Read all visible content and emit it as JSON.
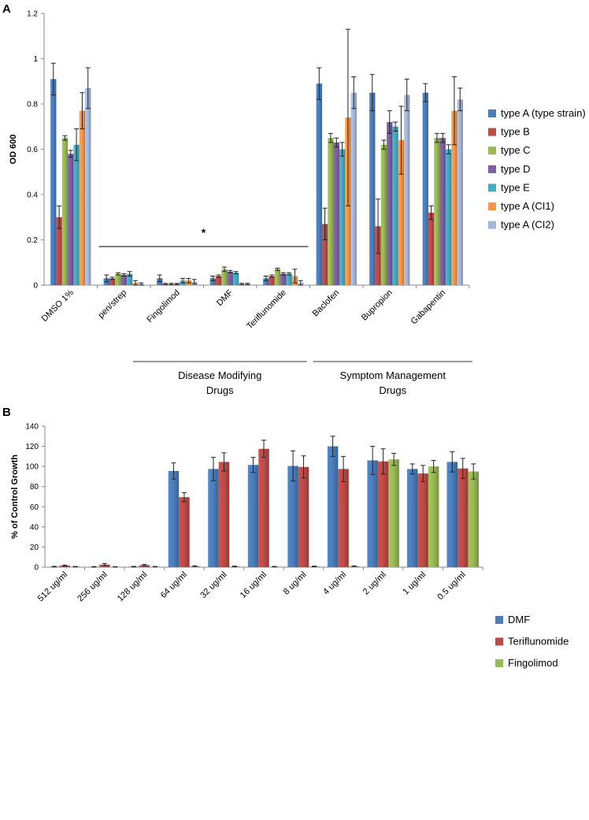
{
  "chart_data": [
    {
      "panel": "A",
      "type": "bar",
      "ylabel": "OD 600",
      "ylim": [
        0,
        1.2
      ],
      "yticks": [
        0,
        0.2,
        0.4,
        0.6,
        0.8,
        1,
        1.2
      ],
      "categories": [
        "DMSO 1%",
        "pen/strep",
        "Fingolimod",
        "DMF",
        "Teriflunomide",
        "Baclofen",
        "Bupropion",
        "Gabapentin"
      ],
      "series": [
        {
          "name": "type A (type strain)",
          "color": "#4a7ebb",
          "values": [
            0.91,
            0.03,
            0.03,
            0.03,
            0.03,
            0.89,
            0.85,
            0.85
          ],
          "errors": [
            0.07,
            0.015,
            0.015,
            0.01,
            0.01,
            0.07,
            0.08,
            0.04
          ]
        },
        {
          "name": "type B",
          "color": "#be4b48",
          "values": [
            0.3,
            0.03,
            0.005,
            0.04,
            0.04,
            0.27,
            0.26,
            0.32
          ],
          "errors": [
            0.05,
            0.005,
            0.003,
            0.005,
            0.005,
            0.07,
            0.12,
            0.03
          ]
        },
        {
          "name": "type C",
          "color": "#98b954",
          "values": [
            0.65,
            0.05,
            0.005,
            0.07,
            0.07,
            0.65,
            0.62,
            0.65
          ],
          "errors": [
            0.01,
            0.005,
            0.003,
            0.01,
            0.005,
            0.02,
            0.02,
            0.02
          ]
        },
        {
          "name": "type D",
          "color": "#7d5fa0",
          "values": [
            0.58,
            0.045,
            0.005,
            0.06,
            0.05,
            0.63,
            0.72,
            0.65
          ],
          "errors": [
            0.015,
            0.005,
            0.003,
            0.005,
            0.005,
            0.02,
            0.05,
            0.02
          ]
        },
        {
          "name": "type E",
          "color": "#46aac4",
          "values": [
            0.62,
            0.05,
            0.02,
            0.055,
            0.05,
            0.6,
            0.7,
            0.6
          ],
          "errors": [
            0.07,
            0.01,
            0.01,
            0.005,
            0.005,
            0.03,
            0.02,
            0.02
          ]
        },
        {
          "name": "type A (CI1)",
          "color": "#f79646",
          "values": [
            0.77,
            0.01,
            0.02,
            0.005,
            0.04,
            0.74,
            0.64,
            0.77
          ],
          "errors": [
            0.08,
            0.01,
            0.01,
            0.003,
            0.03,
            0.39,
            0.15,
            0.15
          ]
        },
        {
          "name": "type A (CI2)",
          "color": "#a5b6da",
          "values": [
            0.87,
            0.005,
            0.015,
            0.005,
            0.01,
            0.85,
            0.84,
            0.82
          ],
          "errors": [
            0.09,
            0.005,
            0.01,
            0.003,
            0.01,
            0.07,
            0.07,
            0.05
          ]
        }
      ],
      "annotation": "*",
      "group_labels": [
        "Disease Modifying Drugs",
        "Symptom Management Drugs"
      ]
    },
    {
      "panel": "B",
      "type": "bar",
      "ylabel": "% of Control Growth",
      "ylim": [
        0,
        140
      ],
      "yticks": [
        0,
        20,
        40,
        60,
        80,
        100,
        120,
        140
      ],
      "categories": [
        "512 ug/ml",
        "256 ug/ml",
        "128 ug/ml",
        "64 ug/ml",
        "32 ug/ml",
        "16 ug/ml",
        "8 ug/ml",
        "4 ug/ml",
        "2 ug/ml",
        "1 ug/ml",
        "0.5 ug/ml"
      ],
      "series": [
        {
          "name": "DMF",
          "color": "#4a7ebb",
          "values": [
            0.5,
            0.3,
            0.5,
            95.5,
            97.5,
            101.5,
            100.5,
            120,
            106,
            97.5,
            104.5
          ],
          "errors": [
            0.3,
            0.3,
            0.3,
            8,
            11.5,
            7.5,
            15,
            10,
            14,
            5,
            10
          ]
        },
        {
          "name": "Teriflunomide",
          "color": "#be4b48",
          "values": [
            1.5,
            2.5,
            2,
            69.5,
            104.5,
            117.5,
            99.5,
            97.5,
            105,
            93,
            98
          ],
          "errors": [
            0.5,
            1,
            0.7,
            4.5,
            9,
            8.5,
            11,
            12.5,
            12.5,
            8,
            10
          ]
        },
        {
          "name": "Fingolimod",
          "color": "#98b954",
          "values": [
            0.5,
            0.3,
            0.5,
            1,
            0.7,
            0.5,
            0.7,
            1,
            107,
            100,
            95
          ],
          "errors": [
            0.2,
            0.2,
            0.2,
            0.3,
            0.3,
            0.2,
            0.3,
            0.3,
            6,
            6,
            7.5
          ]
        }
      ]
    }
  ],
  "labels": {
    "panel_a": "A",
    "panel_b": "B"
  }
}
